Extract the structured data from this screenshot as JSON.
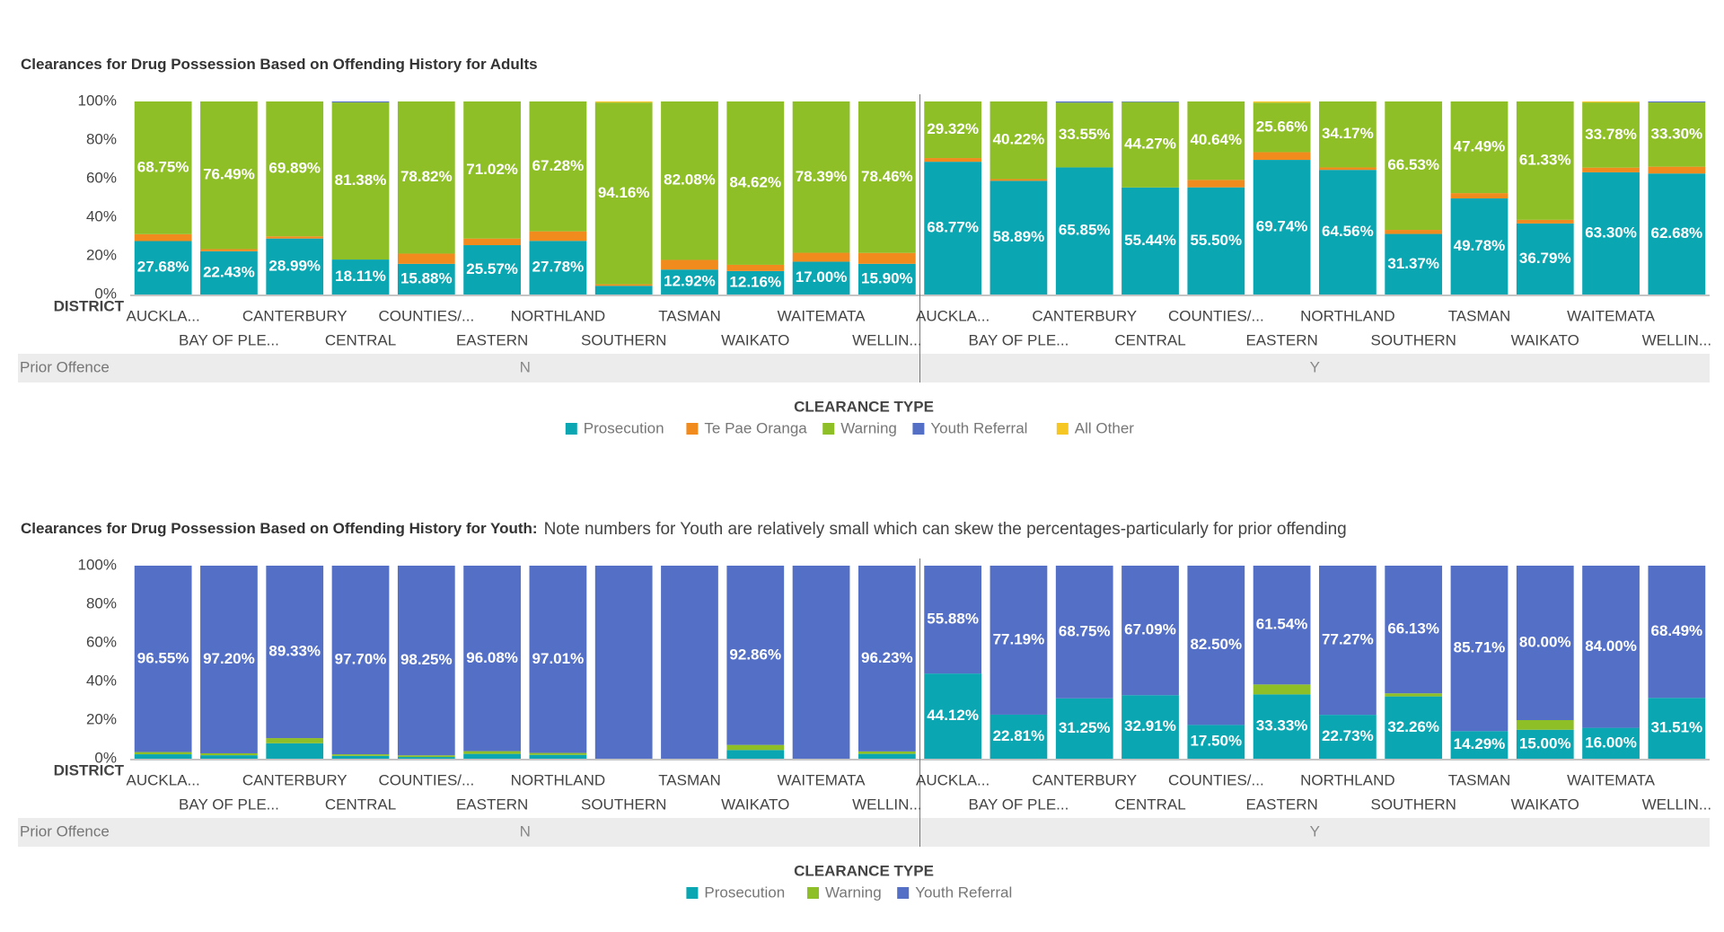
{
  "chart_data": [
    {
      "type": "stacked-bar-100",
      "title": "Clearances for Drug Possession Based on Offending History for Adults",
      "x_label": "DISTRICT",
      "group_title": "Prior Offence",
      "groups": [
        "N",
        "Y"
      ],
      "legend_title": "CLEARANCE TYPE",
      "legend": "bottom",
      "ylim": [
        0,
        100
      ],
      "yticks": [
        {
          "value": 0,
          "label": "0%"
        },
        {
          "value": 20,
          "label": "20%"
        },
        {
          "value": 40,
          "label": "40%"
        },
        {
          "value": 60,
          "label": "60%"
        },
        {
          "value": 80,
          "label": "80%"
        },
        {
          "value": 100,
          "label": "100%"
        }
      ],
      "categories": [
        "AUCKLA...",
        "BAY OF PLE...",
        "CANTERBURY",
        "CENTRAL",
        "COUNTIES/...",
        "EASTERN",
        "NORTHLAND",
        "SOUTHERN",
        "TASMAN",
        "WAIKATO",
        "WAITEMATA",
        "WELLIN...",
        "AUCKLA...",
        "BAY OF PLE...",
        "CANTERBURY",
        "CENTRAL",
        "COUNTIES/...",
        "EASTERN",
        "NORTHLAND",
        "SOUTHERN",
        "TASMAN",
        "WAIKATO",
        "WAITEMATA",
        "WELLIN..."
      ],
      "series": [
        {
          "name": "Prosecution",
          "color": "#0aa6b2",
          "values": [
            27.68,
            22.43,
            28.99,
            18.11,
            15.88,
            25.57,
            27.78,
            4.5,
            12.92,
            12.16,
            17.0,
            15.9,
            68.77,
            58.89,
            65.85,
            55.44,
            55.5,
            69.74,
            64.56,
            31.37,
            49.78,
            36.79,
            63.3,
            62.68
          ],
          "value_labels": [
            "27.68%",
            "22.43%",
            "28.99%",
            "18.11%",
            "15.88%",
            "25.57%",
            "27.78%",
            null,
            "12.92%",
            "12.16%",
            "17.00%",
            "15.90%",
            "68.77%",
            "58.89%",
            "65.85%",
            "55.44%",
            "55.50%",
            "69.74%",
            "64.56%",
            "31.37%",
            "49.78%",
            "36.79%",
            "63.30%",
            "62.68%"
          ]
        },
        {
          "name": "Te Pae Oranga",
          "color": "#f28b1e",
          "values": [
            3.57,
            1.08,
            1.12,
            0,
            5.3,
            3.41,
            4.94,
            0.8,
            5.0,
            3.22,
            4.61,
            5.64,
            1.91,
            0.89,
            0,
            0,
            3.86,
            4.0,
            1.27,
            2.1,
            2.73,
            1.88,
            2.42,
            3.52
          ]
        },
        {
          "name": "Warning",
          "color": "#8fbf27",
          "values": [
            68.75,
            76.49,
            69.89,
            81.38,
            78.82,
            71.02,
            67.28,
            94.16,
            82.08,
            84.62,
            78.39,
            78.46,
            29.32,
            40.22,
            33.55,
            44.27,
            40.64,
            25.66,
            34.17,
            66.53,
            47.49,
            61.33,
            33.78,
            33.3
          ],
          "value_labels": [
            "68.75%",
            "76.49%",
            "69.89%",
            "81.38%",
            "78.82%",
            "71.02%",
            "67.28%",
            "94.16%",
            "82.08%",
            "84.62%",
            "78.39%",
            "78.46%",
            "29.32%",
            "40.22%",
            "33.55%",
            "44.27%",
            "40.64%",
            "25.66%",
            "34.17%",
            "66.53%",
            "47.49%",
            "61.33%",
            "33.78%",
            "33.30%"
          ]
        },
        {
          "name": "Youth Referral",
          "color": "#5470c6",
          "values": [
            0,
            0,
            0,
            0.51,
            0,
            0,
            0,
            0,
            0,
            0,
            0,
            0,
            0,
            0,
            0.6,
            0.29,
            0,
            0,
            0,
            0,
            0,
            0,
            0,
            0.5
          ]
        },
        {
          "name": "All Other",
          "color": "#f6c623",
          "values": [
            0,
            0,
            0,
            0,
            0,
            0,
            0,
            0.54,
            0,
            0,
            0,
            0,
            0,
            0,
            0,
            0,
            0,
            0.6,
            0,
            0,
            0,
            0,
            0.5,
            0
          ]
        }
      ]
    },
    {
      "type": "stacked-bar-100",
      "title": "Clearances for Drug Possession Based on Offending History for Youth:",
      "note": "Note numbers for Youth are relatively small which can skew the percentages-particularly for prior offending",
      "x_label": "DISTRICT",
      "group_title": "Prior Offence",
      "groups": [
        "N",
        "Y"
      ],
      "legend_title": "CLEARANCE TYPE",
      "legend": "bottom",
      "ylim": [
        0,
        100
      ],
      "yticks": [
        {
          "value": 0,
          "label": "0%"
        },
        {
          "value": 20,
          "label": "20%"
        },
        {
          "value": 40,
          "label": "40%"
        },
        {
          "value": 60,
          "label": "60%"
        },
        {
          "value": 80,
          "label": "80%"
        },
        {
          "value": 100,
          "label": "100%"
        }
      ],
      "categories": [
        "AUCKLA...",
        "BAY OF PLE...",
        "CANTERBURY",
        "CENTRAL",
        "COUNTIES/...",
        "EASTERN",
        "NORTHLAND",
        "SOUTHERN",
        "TASMAN",
        "WAIKATO",
        "WAITEMATA",
        "WELLIN...",
        "AUCKLA...",
        "BAY OF PLE...",
        "CANTERBURY",
        "CENTRAL",
        "COUNTIES/...",
        "EASTERN",
        "NORTHLAND",
        "SOUTHERN",
        "TASMAN",
        "WAIKATO",
        "WAITEMATA",
        "WELLIN..."
      ],
      "series": [
        {
          "name": "Prosecution",
          "color": "#0aa6b2",
          "values": [
            2.3,
            1.8,
            8.0,
            1.5,
            0.9,
            2.5,
            2.0,
            0,
            0,
            4.5,
            0,
            2.5,
            44.12,
            22.81,
            31.25,
            32.91,
            17.5,
            33.33,
            22.73,
            32.26,
            14.29,
            15.0,
            16.0,
            31.51
          ],
          "value_labels": [
            null,
            null,
            null,
            null,
            null,
            null,
            null,
            null,
            null,
            null,
            null,
            null,
            "44.12%",
            "22.81%",
            "31.25%",
            "32.91%",
            "17.50%",
            "33.33%",
            "22.73%",
            "32.26%",
            "14.29%",
            "15.00%",
            "16.00%",
            "31.51%"
          ]
        },
        {
          "name": "Warning",
          "color": "#8fbf27",
          "values": [
            1.15,
            1.0,
            2.67,
            0.8,
            0.85,
            1.42,
            0.99,
            0,
            0,
            2.64,
            0,
            1.27,
            0,
            0,
            0,
            0,
            0,
            5.13,
            0,
            1.61,
            0,
            5.0,
            0,
            0
          ]
        },
        {
          "name": "Youth Referral",
          "color": "#5470c6",
          "values": [
            96.55,
            97.2,
            89.33,
            97.7,
            98.25,
            96.08,
            97.01,
            100,
            100,
            92.86,
            100,
            96.23,
            55.88,
            77.19,
            68.75,
            67.09,
            82.5,
            61.54,
            77.27,
            66.13,
            85.71,
            80.0,
            84.0,
            68.49
          ],
          "value_labels": [
            "96.55%",
            "97.20%",
            "89.33%",
            "97.70%",
            "98.25%",
            "96.08%",
            "97.01%",
            null,
            null,
            "92.86%",
            null,
            "96.23%",
            "55.88%",
            "77.19%",
            "68.75%",
            "67.09%",
            "82.50%",
            "61.54%",
            "77.27%",
            "66.13%",
            "85.71%",
            "80.00%",
            "84.00%",
            "68.49%"
          ]
        }
      ]
    }
  ]
}
